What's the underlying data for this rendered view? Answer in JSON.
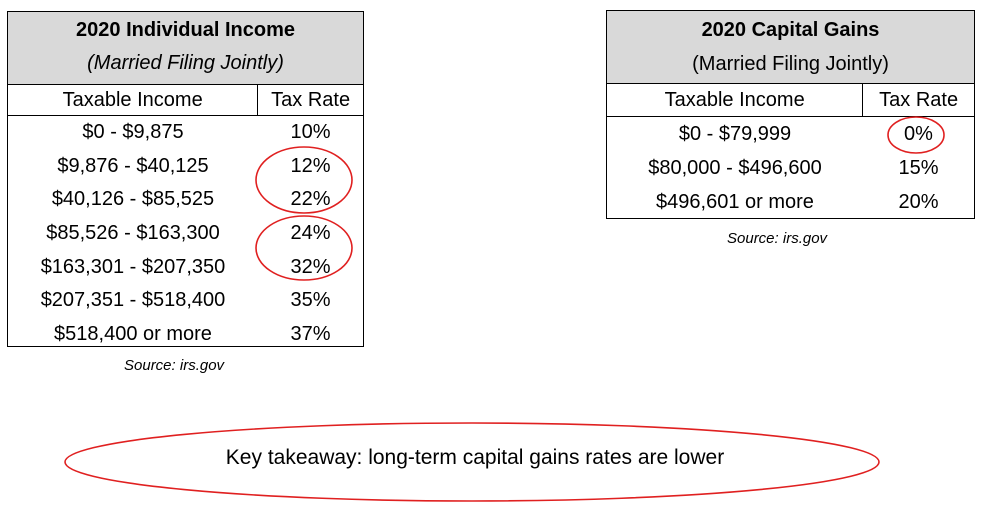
{
  "individual_table": {
    "title": "2020 Individual Income",
    "subtitle": "(Married Filing Jointly)",
    "col_income": "Taxable Income",
    "col_rate": "Tax Rate",
    "rows": [
      {
        "income": "$0 - $9,875",
        "rate": "10%"
      },
      {
        "income": "$9,876 - $40,125",
        "rate": "12%"
      },
      {
        "income": "$40,126 - $85,525",
        "rate": "22%"
      },
      {
        "income": "$85,526 - $163,300",
        "rate": "24%"
      },
      {
        "income": "$163,301 - $207,350",
        "rate": "32%"
      },
      {
        "income": "$207,351 - $518,400",
        "rate": "35%"
      },
      {
        "income": "$518,400 or more",
        "rate": "37%"
      }
    ],
    "source": "Source: irs.gov"
  },
  "capital_gains_table": {
    "title": "2020 Capital Gains",
    "subtitle": "(Married Filing Jointly)",
    "col_income": "Taxable Income",
    "col_rate": "Tax Rate",
    "rows": [
      {
        "income": "$0 - $79,999",
        "rate": "0%"
      },
      {
        "income": "$80,000 - $496,600",
        "rate": "15%"
      },
      {
        "income": "$496,601 or more",
        "rate": "20%"
      }
    ],
    "source": "Source: irs.gov"
  },
  "takeaway": "Key takeaway: long-term capital gains rates are lower",
  "colors": {
    "header_fill": "#d9d9d9",
    "annotation_red": "#e02020"
  }
}
